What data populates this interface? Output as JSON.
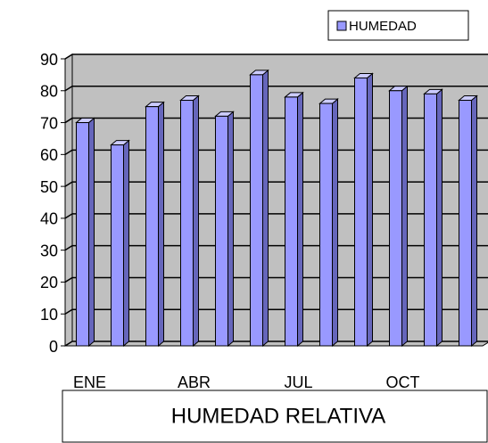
{
  "chart_data": {
    "type": "bar",
    "title": "HUMEDAD RELATIVA",
    "categories": [
      "ENE",
      null,
      null,
      "ABR",
      null,
      null,
      "JUL",
      null,
      null,
      "OCT",
      null,
      null
    ],
    "series": [
      {
        "name": "HUMEDAD",
        "color": "#9999ff",
        "values": [
          70,
          63,
          75,
          77,
          72,
          85,
          78,
          76,
          84,
          80,
          79,
          77
        ]
      }
    ],
    "ylim": [
      0,
      90
    ],
    "yticks": [
      0,
      10,
      20,
      30,
      40,
      50,
      60,
      70,
      80,
      90
    ],
    "grid": true,
    "legend": "top-right"
  }
}
